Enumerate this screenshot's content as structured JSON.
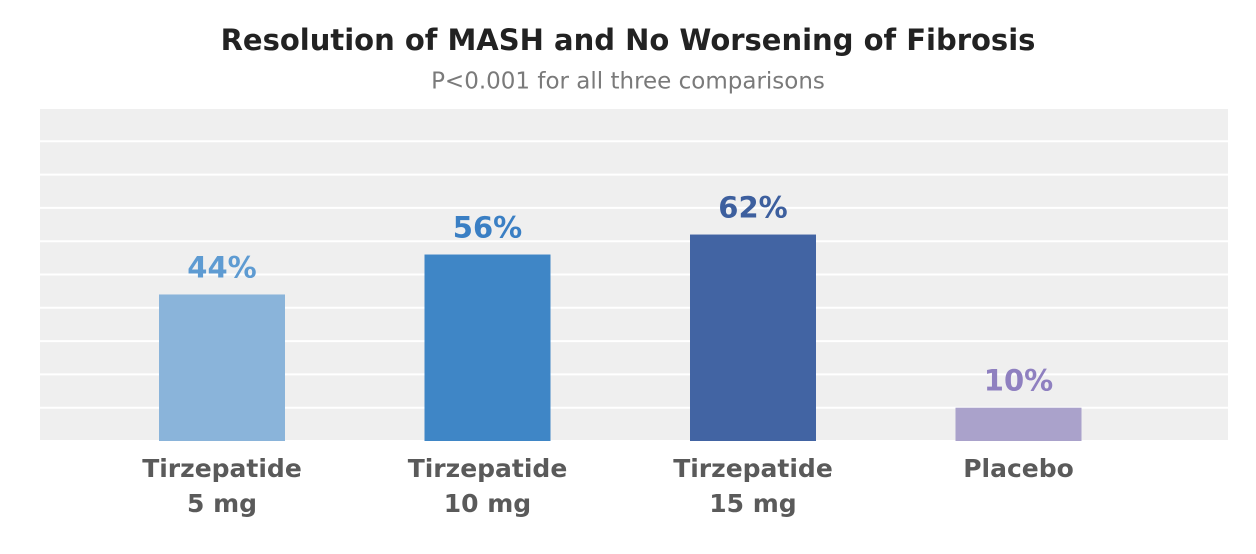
{
  "chart_data": {
    "type": "bar",
    "title": "Resolution of MASH and No Worsening of Fibrosis",
    "subtitle": "P<0.001 for all three comparisons",
    "categories": [
      [
        "Tirzepatide",
        "5 mg"
      ],
      [
        "Tirzepatide",
        "10 mg"
      ],
      [
        "Tirzepatide",
        "15 mg"
      ],
      [
        "Placebo"
      ]
    ],
    "values": [
      44,
      56,
      62,
      10
    ],
    "value_labels": [
      "44%",
      "56%",
      "62%",
      "10%"
    ],
    "colors": [
      "#8ab4da",
      "#3f86c6",
      "#4264a3",
      "#aaa2cb"
    ],
    "label_colors": [
      "#5e9bd2",
      "#3a7fc4",
      "#3d5f9e",
      "#8f80c0"
    ],
    "ylim": [
      0,
      100
    ],
    "yticks": [
      0,
      10,
      20,
      30,
      40,
      50,
      60,
      70,
      80,
      90,
      100
    ],
    "grid": true
  }
}
